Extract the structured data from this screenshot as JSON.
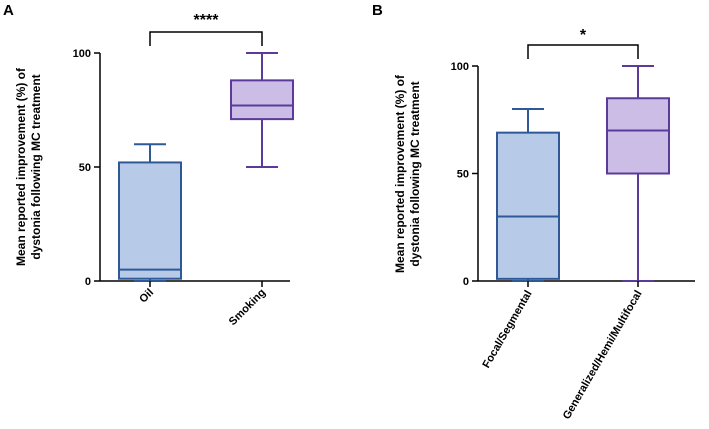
{
  "chart_data": [
    {
      "panel": "A",
      "type": "box",
      "ylabel_line1": "Mean reported improvement (%) of",
      "ylabel_line2": "dystonia following MC treatment",
      "ylim": [
        0,
        100
      ],
      "yticks": [
        "0",
        "50",
        "100"
      ],
      "categories": [
        "Oil",
        "Smoking"
      ],
      "boxes": [
        {
          "category": "Oil",
          "min": 0,
          "q1": 1,
          "median": 5,
          "q3": 52,
          "max": 60,
          "fill": "#b7cbe8",
          "stroke": "#2e5896"
        },
        {
          "category": "Smoking",
          "min": 50,
          "q1": 71,
          "median": 77,
          "q3": 88,
          "max": 100,
          "fill": "#cbbde6",
          "stroke": "#5b3a9a"
        }
      ],
      "significance": "****"
    },
    {
      "panel": "B",
      "type": "box",
      "ylabel_line1": "Mean reported improvement (%) of",
      "ylabel_line2": "dystonia following MC treatment",
      "ylim": [
        0,
        100
      ],
      "yticks": [
        "0",
        "50",
        "100"
      ],
      "categories": [
        "Focal/Segmental",
        "Generalized/Hemi/Multifocal"
      ],
      "boxes": [
        {
          "category": "Focal/Segmental",
          "min": 0,
          "q1": 1,
          "median": 30,
          "q3": 69,
          "max": 80,
          "fill": "#b7cbe8",
          "stroke": "#2e5896"
        },
        {
          "category": "Generalized/Hemi/Multifocal",
          "min": 0,
          "q1": 50,
          "median": 70,
          "q3": 85,
          "max": 100,
          "fill": "#cbbde6",
          "stroke": "#5b3a9a"
        }
      ],
      "significance": "*"
    }
  ]
}
